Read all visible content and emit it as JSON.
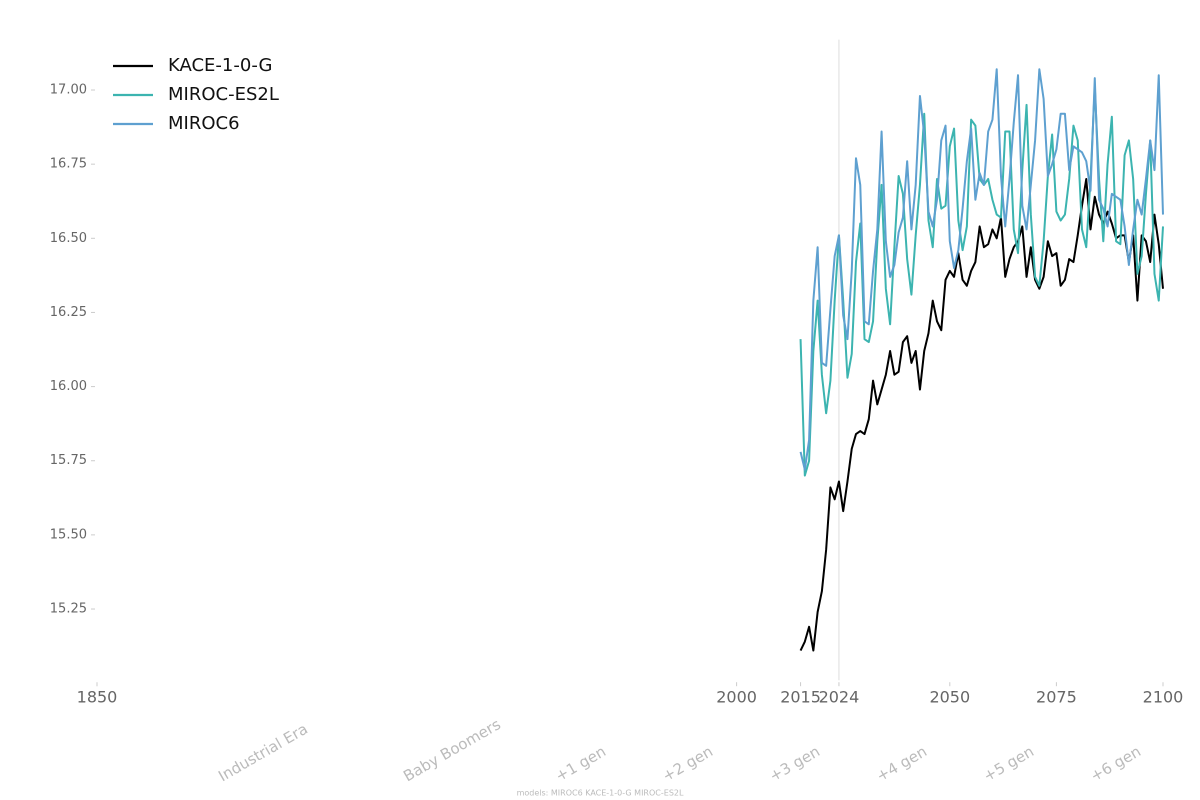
{
  "chart_data": {
    "type": "line",
    "x": [
      2015,
      2016,
      2017,
      2018,
      2019,
      2020,
      2021,
      2022,
      2023,
      2024,
      2025,
      2026,
      2027,
      2028,
      2029,
      2030,
      2031,
      2032,
      2033,
      2034,
      2035,
      2036,
      2037,
      2038,
      2039,
      2040,
      2041,
      2042,
      2043,
      2044,
      2045,
      2046,
      2047,
      2048,
      2049,
      2050,
      2051,
      2052,
      2053,
      2054,
      2055,
      2056,
      2057,
      2058,
      2059,
      2060,
      2061,
      2062,
      2063,
      2064,
      2065,
      2066,
      2067,
      2068,
      2069,
      2070,
      2071,
      2072,
      2073,
      2074,
      2075,
      2076,
      2077,
      2078,
      2079,
      2080,
      2081,
      2082,
      2083,
      2084,
      2085,
      2086,
      2087,
      2088,
      2089,
      2090,
      2091,
      2092,
      2093,
      2094,
      2095,
      2096,
      2097,
      2098,
      2099,
      2100
    ],
    "series": [
      {
        "name": "KACE-1-0-G",
        "color": "#000000",
        "values": [
          15.11,
          15.14,
          15.19,
          15.11,
          15.24,
          15.31,
          15.45,
          15.66,
          15.62,
          15.68,
          15.58,
          15.68,
          15.79,
          15.84,
          15.85,
          15.84,
          15.89,
          16.02,
          15.94,
          15.99,
          16.04,
          16.12,
          16.04,
          16.05,
          16.15,
          16.17,
          16.08,
          16.12,
          15.99,
          16.12,
          16.18,
          16.29,
          16.22,
          16.19,
          16.36,
          16.39,
          16.37,
          16.45,
          16.36,
          16.34,
          16.39,
          16.42,
          16.54,
          16.47,
          16.48,
          16.53,
          16.5,
          16.57,
          16.37,
          16.43,
          16.47,
          16.49,
          16.54,
          16.37,
          16.47,
          16.36,
          16.33,
          16.37,
          16.49,
          16.44,
          16.45,
          16.34,
          16.36,
          16.43,
          16.42,
          16.51,
          16.61,
          16.7,
          16.53,
          16.64,
          16.58,
          16.55,
          16.59,
          16.55,
          16.5,
          16.51,
          16.51,
          16.42,
          16.51,
          16.29,
          16.51,
          16.49,
          16.42,
          16.58,
          16.48,
          16.33
        ]
      },
      {
        "name": "MIROC-ES2L",
        "color": "#3cb4b0",
        "values": [
          16.16,
          15.7,
          15.75,
          16.12,
          16.29,
          16.04,
          15.91,
          16.02,
          16.29,
          16.51,
          16.29,
          16.03,
          16.11,
          16.42,
          16.55,
          16.16,
          16.15,
          16.22,
          16.49,
          16.68,
          16.33,
          16.21,
          16.47,
          16.71,
          16.65,
          16.43,
          16.31,
          16.51,
          16.68,
          16.92,
          16.56,
          16.47,
          16.7,
          16.6,
          16.61,
          16.81,
          16.87,
          16.56,
          16.46,
          16.54,
          16.9,
          16.88,
          16.7,
          16.68,
          16.7,
          16.63,
          16.58,
          16.57,
          16.86,
          16.86,
          16.53,
          16.45,
          16.73,
          16.95,
          16.58,
          16.37,
          16.34,
          16.49,
          16.71,
          16.85,
          16.59,
          16.56,
          16.58,
          16.7,
          16.88,
          16.83,
          16.53,
          16.47,
          16.7,
          17.01,
          16.7,
          16.49,
          16.75,
          16.91,
          16.49,
          16.48,
          16.78,
          16.83,
          16.7,
          16.38,
          16.44,
          16.65,
          16.83,
          16.38,
          16.29,
          16.54
        ]
      },
      {
        "name": "MIROC6",
        "color": "#5ea0d0",
        "values": [
          15.78,
          15.72,
          15.82,
          16.29,
          16.47,
          16.08,
          16.07,
          16.26,
          16.44,
          16.51,
          16.24,
          16.16,
          16.39,
          16.77,
          16.68,
          16.22,
          16.21,
          16.39,
          16.53,
          16.86,
          16.49,
          16.37,
          16.41,
          16.52,
          16.57,
          16.76,
          16.53,
          16.68,
          16.98,
          16.85,
          16.59,
          16.54,
          16.63,
          16.83,
          16.88,
          16.49,
          16.4,
          16.46,
          16.6,
          16.76,
          16.87,
          16.63,
          16.72,
          16.68,
          16.86,
          16.9,
          17.07,
          16.71,
          16.54,
          16.7,
          16.89,
          17.05,
          16.61,
          16.53,
          16.68,
          16.83,
          17.07,
          16.97,
          16.71,
          16.75,
          16.8,
          16.92,
          16.92,
          16.73,
          16.81,
          16.8,
          16.79,
          16.76,
          16.66,
          17.04,
          16.63,
          16.6,
          16.54,
          16.65,
          16.64,
          16.63,
          16.54,
          16.41,
          16.53,
          16.63,
          16.58,
          16.7,
          16.83,
          16.73,
          17.05,
          16.58
        ]
      }
    ],
    "xlim": [
      1850,
      2100
    ],
    "xticks": [
      1850,
      2000,
      2015,
      2024,
      2050,
      2075,
      2100
    ],
    "ylim": [
      15.01,
      17.17
    ],
    "yticks": [
      15.25,
      {
        "value": 15.5,
        "label": "15.50"
      },
      15.75,
      {
        "value": 16,
        "label": "16.00"
      },
      16.25,
      {
        "value": 16.5,
        "label": "16.50"
      },
      16.75,
      {
        "value": 17,
        "label": "17.00"
      }
    ],
    "reference_line": 2024,
    "legend": "upper left",
    "annotations": [
      "Industrial Era",
      "Baby Boomers",
      "+1 gen",
      "+2 gen",
      "+3 gen",
      "+4 gen",
      "+5 gen",
      "+6 gen"
    ],
    "footnote": "models: MIROC6 KACE-1-0-G MIROC-ES2L"
  }
}
